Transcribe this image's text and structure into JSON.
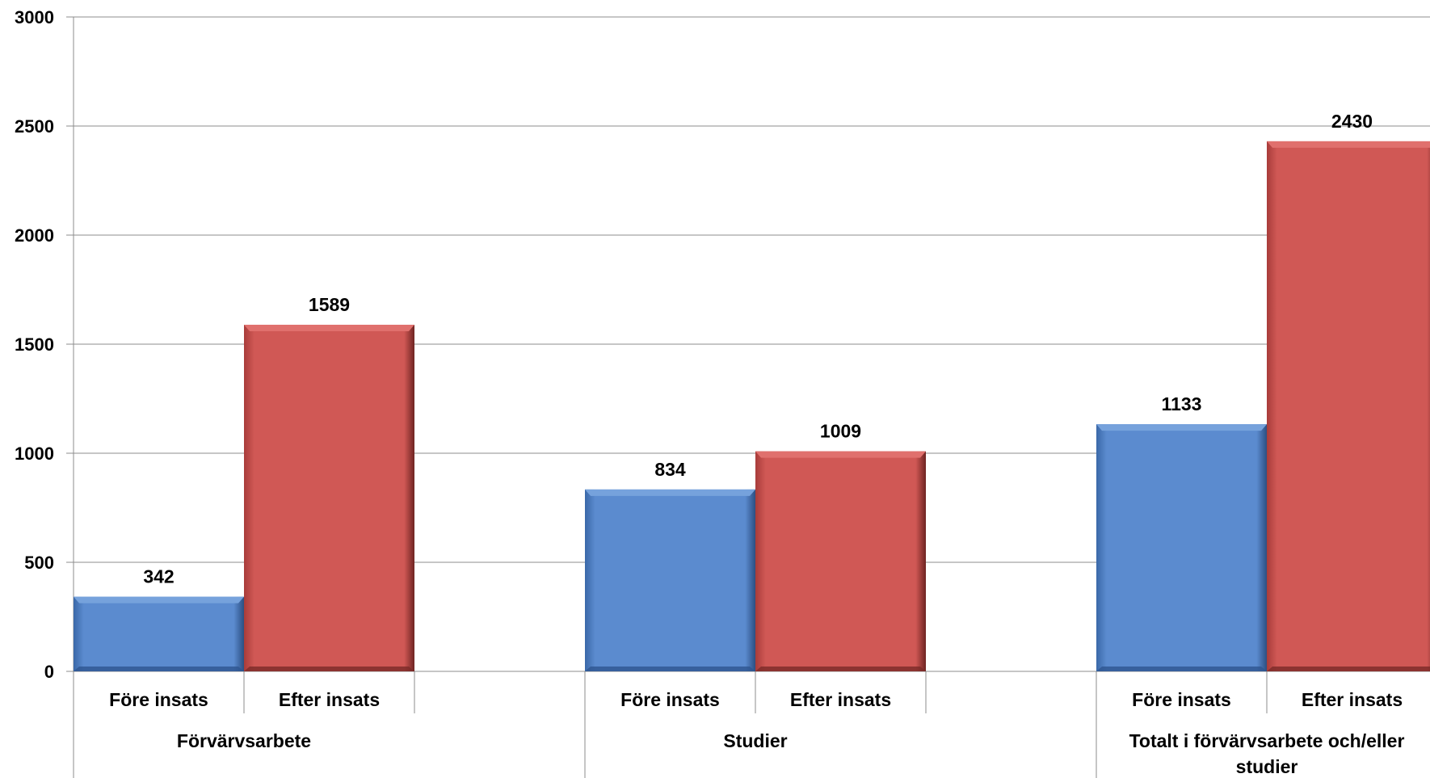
{
  "chart_data": {
    "type": "bar",
    "title": "",
    "xlabel": "",
    "ylabel": "",
    "ylim": [
      0,
      3000
    ],
    "yticks": [
      0,
      500,
      1000,
      1500,
      2000,
      2500,
      3000
    ],
    "grid": true,
    "legend": "none",
    "groups": [
      {
        "label": "Förvärvsarbete",
        "label_lines": [
          "Förvärvsarbete"
        ]
      },
      {
        "label": "Studier",
        "label_lines": [
          "Studier"
        ]
      },
      {
        "label": "Totalt i förvärvsarbete och/eller studier",
        "label_lines": [
          "Totalt i förvärvsarbete och/eller",
          "studier"
        ]
      }
    ],
    "bar_labels": [
      "Före insats",
      "Efter insats"
    ],
    "series": [
      {
        "values": [
          342,
          834,
          1133
        ],
        "color": "#4f81c4"
      },
      {
        "values": [
          1589,
          1009,
          2430
        ],
        "color": "#c84f4d"
      }
    ]
  }
}
